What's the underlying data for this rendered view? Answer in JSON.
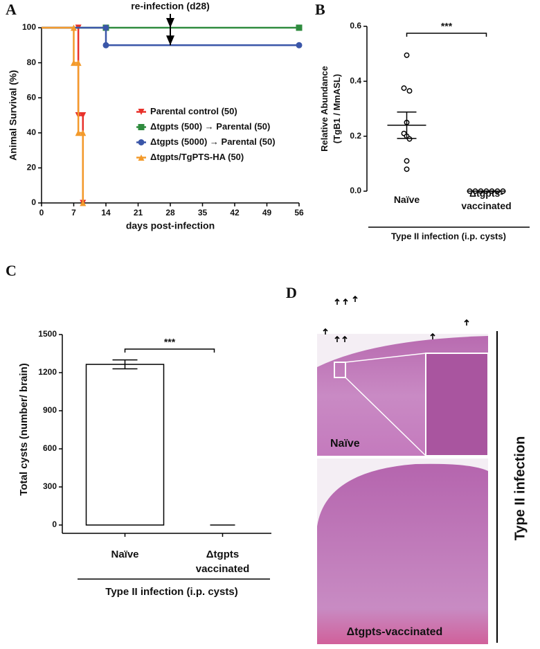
{
  "chart_data": [
    {
      "type": "line",
      "label": "A",
      "xlabel": "days post-infection",
      "ylabel": "Animal Survival (%)",
      "annotation": {
        "text": "re-infection (d28)",
        "x": 28
      },
      "xlim": [
        0,
        56
      ],
      "xticks": [
        0,
        7,
        14,
        21,
        28,
        35,
        42,
        49,
        56
      ],
      "ylim": [
        0,
        100
      ],
      "yticks": [
        0,
        20,
        40,
        60,
        80,
        100
      ],
      "legend": "center-right",
      "series": [
        {
          "name": "Parental control (50)",
          "color": "#e8312a",
          "marker": "triangle-down",
          "x": [
            0,
            8,
            8,
            9,
            9
          ],
          "values": [
            100,
            100,
            50,
            50,
            0
          ]
        },
        {
          "name": "Δtgpts (500) → Parental (50)",
          "color": "#2e8b3e",
          "marker": "square",
          "x": [
            0,
            14,
            56
          ],
          "values": [
            100,
            100,
            100
          ]
        },
        {
          "name": "Δtgpts (5000) → Parental (50)",
          "color": "#3a56a8",
          "marker": "circle",
          "x": [
            0,
            14,
            14,
            56
          ],
          "values": [
            100,
            100,
            90,
            90
          ]
        },
        {
          "name": "Δtgpts/TgPTS-HA (50)",
          "color": "#f39a2b",
          "marker": "triangle-up",
          "x": [
            0,
            7,
            7,
            8,
            8,
            9,
            9
          ],
          "values": [
            100,
            100,
            80,
            80,
            40,
            40,
            0
          ]
        }
      ]
    },
    {
      "type": "dot",
      "label": "B",
      "ylabel": "Relative Abundance\n(TgB1 / MmASL)",
      "xlabel": "Type II infection (i.p. cysts)",
      "categories": [
        "Naïve",
        "Δtgpts-\nvaccinated"
      ],
      "points": [
        [
          0.495,
          0.375,
          0.365,
          0.25,
          0.21,
          0.2,
          0.19,
          0.11,
          0.08
        ],
        [
          0,
          0,
          0,
          0,
          0,
          0,
          0
        ]
      ],
      "mean": [
        0.24,
        0
      ],
      "sem": [
        0.048,
        0
      ],
      "significance": "***",
      "ylim": [
        0,
        0.6
      ],
      "yticks": [
        {
          "value": 0,
          "label": "0.0"
        },
        0.2,
        0.4,
        0.6
      ]
    },
    {
      "type": "bar",
      "label": "C",
      "ylabel": "Total cysts (number/ brain)",
      "xlabel": "Type II infection (i.p. cysts)",
      "categories": [
        "Naïve",
        "Δtgpts\nvaccinated"
      ],
      "values": [
        1265,
        0
      ],
      "errors": [
        35,
        0
      ],
      "significance": "***",
      "color": "#ffffff",
      "ylim": [
        0,
        1500
      ],
      "yticks": [
        0,
        300,
        600,
        900,
        1200,
        1500
      ]
    }
  ],
  "image_panel": {
    "label": "D",
    "top_label": "Naïve",
    "bottom_label": "Δtgpts-vaccinated",
    "side_label": "Type II infection"
  }
}
